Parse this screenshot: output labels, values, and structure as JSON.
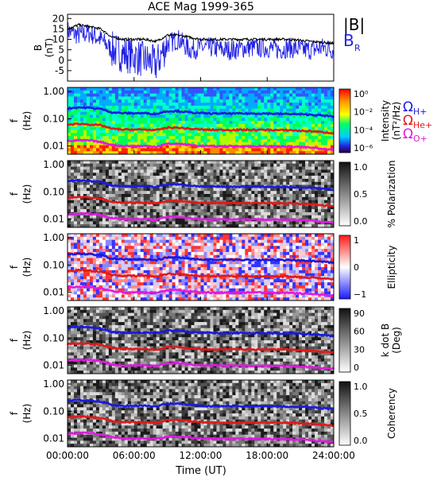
{
  "title": "ACE Mag 1999-365",
  "colors": {
    "B_total": "#000000",
    "B_R": "#1f1fe6",
    "omega_H": "#1a1ae0",
    "omega_He": "#e01a1a",
    "omega_O": "#e01ae0"
  },
  "legend": {
    "b_total_label": "|B|",
    "b_r_label": "B",
    "b_r_sub": "R",
    "omega_symbol": "Ω",
    "h_sub": "H+",
    "he_sub": "He+",
    "o_sub": "O+"
  },
  "x_axis": {
    "label": "Time (UT)",
    "ticks": [
      "00:00:00",
      "06:00:00",
      "12:00:00",
      "18:00:00",
      "24:00:00"
    ]
  },
  "chart_data": [
    {
      "type": "line",
      "panel": "magnetic-field",
      "ylabel": "B",
      "yunits": "(nT)",
      "ylim": [
        -10,
        22
      ],
      "yticks": [
        "20",
        "15",
        "10",
        "5",
        "0",
        "-5"
      ],
      "xlim_hours": [
        0,
        24
      ],
      "series": [
        {
          "name": "|B|",
          "x_hours": [
            0,
            1,
            2,
            3,
            4,
            5,
            6,
            7,
            8,
            9,
            10,
            11,
            12,
            13,
            14,
            15,
            16,
            17,
            18,
            19,
            20,
            21,
            22,
            23,
            24
          ],
          "values": [
            15,
            17,
            16,
            15,
            11,
            10,
            10,
            10,
            9,
            12,
            12,
            11,
            10,
            10,
            10,
            10,
            10,
            10,
            10,
            10,
            10,
            9.5,
            9,
            8.5,
            8
          ]
        },
        {
          "name": "B_R",
          "x_hours": [
            0,
            1,
            2,
            3,
            4,
            5,
            6,
            7,
            8,
            9,
            10,
            11,
            12,
            13,
            14,
            15,
            16,
            17,
            18,
            19,
            20,
            21,
            22,
            23,
            24
          ],
          "values": [
            14,
            12,
            13,
            10,
            5,
            3,
            2,
            0,
            -2,
            8,
            10,
            5,
            6,
            6,
            5,
            5,
            6,
            6,
            6,
            5,
            6,
            5,
            5,
            6,
            5
          ]
        }
      ]
    },
    {
      "type": "heatmap",
      "panel": "intensity",
      "ylabel": "f",
      "yunits": "(Hz)",
      "yscale": "log",
      "yticks": [
        "1.00",
        "0.10",
        "0.01"
      ],
      "colorbar": {
        "label": "Intensity",
        "units": "(nT²/Hz)",
        "ticks": [
          "10⁰",
          "10⁻²",
          "10⁻⁴",
          "10⁻⁶"
        ],
        "scale": "rainbow"
      }
    },
    {
      "type": "heatmap",
      "panel": "polarization",
      "ylabel": "f",
      "yunits": "(Hz)",
      "yscale": "log",
      "yticks": [
        "1.00",
        "0.10",
        "0.01"
      ],
      "colorbar": {
        "label": "% Polarization",
        "ticks": [
          "1.0",
          "0.5",
          "0.0"
        ],
        "scale": "grayscale"
      }
    },
    {
      "type": "heatmap",
      "panel": "ellipticity",
      "ylabel": "f",
      "yunits": "(Hz)",
      "yscale": "log",
      "yticks": [
        "1.00",
        "0.10",
        "0.01"
      ],
      "colorbar": {
        "label": "Ellipticity",
        "ticks": [
          "1",
          "0",
          "−1"
        ],
        "scale": "red-white-blue"
      }
    },
    {
      "type": "heatmap",
      "panel": "k-dot-b",
      "ylabel": "f",
      "yunits": "(Hz)",
      "yscale": "log",
      "yticks": [
        "1.00",
        "0.10",
        "0.01"
      ],
      "colorbar": {
        "label": "k dot B",
        "units": "(Deg)",
        "ticks": [
          "90",
          "60",
          "30",
          "0"
        ],
        "scale": "grayscale"
      }
    },
    {
      "type": "heatmap",
      "panel": "coherency",
      "ylabel": "f",
      "yunits": "(Hz)",
      "yscale": "log",
      "yticks": [
        "1.00",
        "0.10",
        "0.01"
      ],
      "colorbar": {
        "label": "Coherency",
        "ticks": [
          "1.0",
          "0.5",
          "0.0"
        ],
        "scale": "grayscale"
      }
    }
  ],
  "gyro_lines": {
    "x_hours": [
      0,
      1,
      2,
      3,
      4,
      5,
      6,
      7,
      8,
      9,
      10,
      11,
      12,
      13,
      14,
      15,
      16,
      17,
      18,
      19,
      20,
      21,
      22,
      23,
      24
    ],
    "omega_H_hz": [
      0.24,
      0.26,
      0.25,
      0.23,
      0.17,
      0.16,
      0.16,
      0.16,
      0.15,
      0.19,
      0.19,
      0.17,
      0.16,
      0.155,
      0.155,
      0.155,
      0.155,
      0.155,
      0.155,
      0.15,
      0.15,
      0.145,
      0.14,
      0.13,
      0.12
    ],
    "omega_He_hz": [
      0.06,
      0.065,
      0.062,
      0.057,
      0.043,
      0.04,
      0.04,
      0.04,
      0.038,
      0.047,
      0.047,
      0.043,
      0.04,
      0.039,
      0.039,
      0.039,
      0.039,
      0.039,
      0.039,
      0.038,
      0.038,
      0.036,
      0.035,
      0.032,
      0.03
    ],
    "omega_O_hz": [
      0.015,
      0.016,
      0.016,
      0.014,
      0.011,
      0.01,
      0.01,
      0.01,
      0.0095,
      0.012,
      0.012,
      0.011,
      0.01,
      0.0098,
      0.0098,
      0.0098,
      0.0098,
      0.0098,
      0.0098,
      0.0095,
      0.0095,
      0.009,
      0.0088,
      0.008,
      0.0075
    ]
  }
}
